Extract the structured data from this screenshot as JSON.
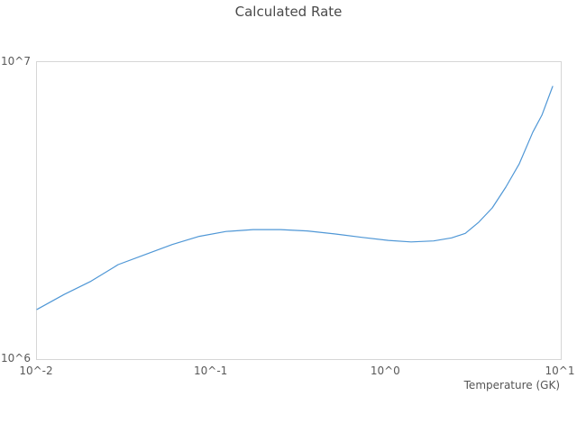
{
  "chart_data": {
    "type": "line",
    "title": "Calculated Rate",
    "xlabel": "Temperature (GK)",
    "ylabel": "",
    "x_scale": "log",
    "y_scale": "log",
    "xlim": [
      0.01,
      10
    ],
    "ylim": [
      1000000,
      10000000
    ],
    "grid": false,
    "legend": false,
    "background_color": "#ffffff",
    "border_color": "#d6d6d6",
    "tick_color": "#595959",
    "x_ticks": [
      {
        "value": 0.01,
        "label": "10^-2"
      },
      {
        "value": 0.1,
        "label": "10^-1"
      },
      {
        "value": 1,
        "label": "10^0"
      },
      {
        "value": 10,
        "label": "10^1"
      }
    ],
    "y_ticks": [
      {
        "value": 1000000,
        "label": "10^6"
      },
      {
        "value": 10000000,
        "label": "10^7"
      }
    ],
    "series": [
      {
        "name": "calculated-rate",
        "color": "#4f97d6",
        "x": [
          0.01,
          0.0143,
          0.0204,
          0.0292,
          0.0417,
          0.0595,
          0.085,
          0.121,
          0.173,
          0.248,
          0.354,
          0.506,
          0.723,
          1.03,
          1.39,
          1.87,
          2.37,
          2.84,
          3.39,
          4.05,
          4.84,
          5.79,
          6.92,
          7.8,
          8.99
        ],
        "y": [
          1470000,
          1650000,
          1830000,
          2080000,
          2250000,
          2430000,
          2590000,
          2690000,
          2730000,
          2730000,
          2700000,
          2640000,
          2570000,
          2510000,
          2480000,
          2500000,
          2560000,
          2650000,
          2890000,
          3230000,
          3790000,
          4550000,
          5810000,
          6630000,
          8280000
        ]
      }
    ]
  }
}
